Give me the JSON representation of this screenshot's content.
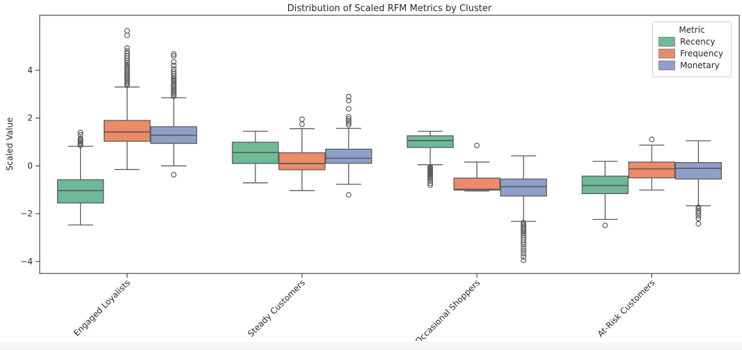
{
  "chart_data": {
    "type": "boxplot",
    "title": "Distribution of Scaled RFM Metrics by Cluster",
    "xlabel": "",
    "ylabel": "Scaled Value",
    "yticks": [
      -4,
      -2,
      0,
      2,
      4
    ],
    "ylim": [
      -4.5,
      6.3
    ],
    "grid": false,
    "categories": [
      "Engaged Loyalists",
      "Steady Customers",
      "Occasional Shoppers",
      "At-Risk Customers"
    ],
    "legend": {
      "title": "Metric",
      "position": "upper right",
      "entries": [
        "Recency",
        "Frequency",
        "Monetary"
      ]
    },
    "series": [
      {
        "name": "Recency",
        "color": "#6fb898",
        "boxes": [
          {
            "whislo": -2.47,
            "q1": -1.55,
            "med": -1.03,
            "q3": -0.58,
            "whishi": 0.82,
            "outliers": [
              0.86,
              0.92,
              0.97,
              1.03,
              1.08,
              1.15,
              1.3,
              1.4
            ]
          },
          {
            "whislo": -0.71,
            "q1": 0.1,
            "med": 0.56,
            "q3": 0.99,
            "whishi": 1.45,
            "outliers": []
          },
          {
            "whislo": 0.05,
            "q1": 0.77,
            "med": 1.06,
            "q3": 1.26,
            "whishi": 1.45,
            "outliers": [
              -0.05,
              -0.09,
              -0.13,
              -0.17,
              -0.21,
              -0.25,
              -0.29,
              -0.33,
              -0.38,
              -0.43,
              -0.48,
              -0.55,
              -0.63,
              -0.72,
              -0.8
            ]
          },
          {
            "whislo": -2.24,
            "q1": -1.16,
            "med": -0.82,
            "q3": -0.43,
            "whishi": 0.19,
            "outliers": [
              -2.49
            ]
          }
        ]
      },
      {
        "name": "Frequency",
        "color": "#ec8b69",
        "boxes": [
          {
            "whislo": -0.15,
            "q1": 1.03,
            "med": 1.42,
            "q3": 1.9,
            "whishi": 3.3,
            "outliers": [
              3.37,
              3.43,
              3.49,
              3.55,
              3.61,
              3.67,
              3.73,
              3.79,
              3.85,
              3.91,
              3.97,
              4.03,
              4.1,
              4.17,
              4.24,
              4.32,
              4.4,
              4.5,
              4.6,
              4.7,
              4.8,
              4.93,
              5.46,
              5.65
            ]
          },
          {
            "whislo": -1.03,
            "q1": -0.16,
            "med": 0.1,
            "q3": 0.55,
            "whishi": 1.56,
            "outliers": [
              1.74,
              1.95
            ]
          },
          {
            "whislo": -1.05,
            "q1": -1.01,
            "med": -0.98,
            "q3": -0.51,
            "whishi": 0.16,
            "outliers": [
              0.85
            ]
          },
          {
            "whislo": -1.01,
            "q1": -0.5,
            "med": -0.12,
            "q3": 0.16,
            "whishi": 0.87,
            "outliers": [
              1.11
            ]
          }
        ]
      },
      {
        "name": "Monetary",
        "color": "#8e9fc9",
        "boxes": [
          {
            "whislo": 0.0,
            "q1": 0.94,
            "med": 1.28,
            "q3": 1.64,
            "whishi": 2.85,
            "outliers": [
              -0.37,
              2.92,
              2.98,
              3.04,
              3.1,
              3.16,
              3.22,
              3.28,
              3.34,
              3.4,
              3.47,
              3.54,
              3.61,
              3.68,
              3.76,
              3.85,
              3.95,
              4.05,
              4.2,
              4.35,
              4.6,
              4.68
            ]
          },
          {
            "whislo": -0.77,
            "q1": 0.11,
            "med": 0.32,
            "q3": 0.7,
            "whishi": 1.57,
            "outliers": [
              -1.21,
              1.72,
              1.8,
              1.88,
              1.96,
              2.05,
              2.39,
              2.73,
              2.9
            ]
          },
          {
            "whislo": -2.32,
            "q1": -1.26,
            "med": -0.87,
            "q3": -0.55,
            "whishi": 0.42,
            "outliers": [
              -2.38,
              -2.44,
              -2.5,
              -2.56,
              -2.62,
              -2.68,
              -2.75,
              -2.82,
              -2.9,
              -3.0,
              -3.1,
              -3.2,
              -3.3,
              -3.43,
              -3.55,
              -3.67,
              -3.8,
              -3.95
            ]
          },
          {
            "whislo": -1.67,
            "q1": -0.55,
            "med": -0.1,
            "q3": 0.14,
            "whishi": 1.05,
            "outliers": [
              -1.73,
              -1.8,
              -1.88,
              -1.97,
              -2.08,
              -2.2,
              -2.42
            ]
          }
        ]
      }
    ],
    "style": {
      "line_color": "#5a5a5a",
      "spine_color": "#262626",
      "text_color": "#262626"
    }
  }
}
